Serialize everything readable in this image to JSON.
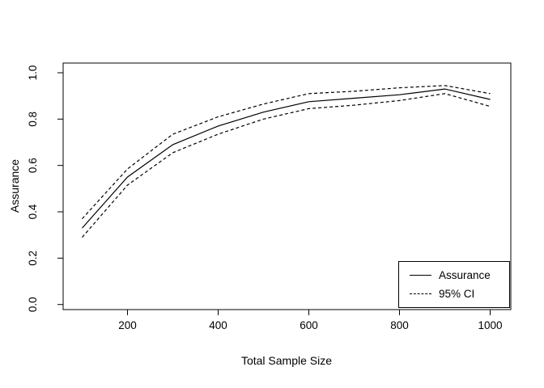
{
  "chart_data": {
    "type": "line",
    "title": "",
    "xlabel": "Total Sample Size",
    "ylabel": "Assurance",
    "x": [
      100,
      200,
      300,
      400,
      500,
      600,
      700,
      800,
      900,
      1000
    ],
    "series": [
      {
        "name": "Assurance",
        "style": "solid",
        "values": [
          0.33,
          0.55,
          0.69,
          0.77,
          0.83,
          0.875,
          0.89,
          0.905,
          0.93,
          0.885
        ]
      },
      {
        "name": "95% CI upper",
        "style": "dashed",
        "values": [
          0.37,
          0.585,
          0.735,
          0.81,
          0.865,
          0.91,
          0.92,
          0.935,
          0.945,
          0.91
        ]
      },
      {
        "name": "95% CI lower",
        "style": "dashed",
        "values": [
          0.29,
          0.515,
          0.655,
          0.735,
          0.8,
          0.845,
          0.86,
          0.88,
          0.91,
          0.855
        ]
      }
    ],
    "xlim": [
      100,
      1000
    ],
    "ylim": [
      0,
      1
    ],
    "x_ticks": [
      "200",
      "400",
      "600",
      "800",
      "1000"
    ],
    "y_ticks": [
      "0.0",
      "0.2",
      "0.4",
      "0.6",
      "0.8",
      "1.0"
    ],
    "grid": false,
    "line_color": "#000000",
    "background_color": "#ffffff",
    "legend": {
      "position": "bottomright",
      "items": [
        {
          "label": "Assurance",
          "line": "solid"
        },
        {
          "label": "95% CI",
          "line": "dashed"
        }
      ]
    }
  }
}
